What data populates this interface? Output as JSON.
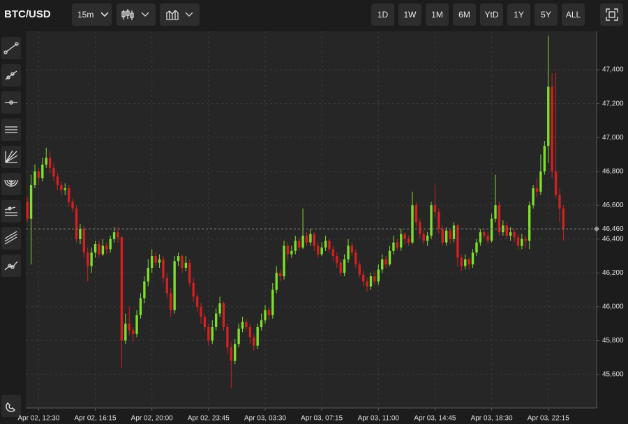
{
  "toolbar": {
    "symbol": "BTC/USD",
    "interval": "15m",
    "ranges": [
      "1D",
      "1W",
      "1M",
      "6M",
      "YtD",
      "1Y",
      "5Y",
      "ALL"
    ]
  },
  "chart_data": {
    "type": "candlestick",
    "up_color": "#7de02c",
    "down_color": "#d42020",
    "grid": true,
    "xlim": [
      -0.4,
      150.8
    ],
    "xticks": [
      {
        "value": 3,
        "label": "Apr 02, 12:30"
      },
      {
        "value": 18,
        "label": "Apr 02, 16:15"
      },
      {
        "value": 33,
        "label": "Apr 02, 20:00"
      },
      {
        "value": 48,
        "label": "Apr 02, 23:45"
      },
      {
        "value": 63,
        "label": "Apr 03, 03:30"
      },
      {
        "value": 78,
        "label": "Apr 03, 07:15"
      },
      {
        "value": 93,
        "label": "Apr 03, 11:00"
      },
      {
        "value": 108,
        "label": "Apr 03, 14:45"
      },
      {
        "value": 123,
        "label": "Apr 03, 18:30"
      },
      {
        "value": 138,
        "label": "Apr 03, 22:15"
      }
    ],
    "ylim": [
      45402,
      47627
    ],
    "yticks": [
      {
        "value": 45600,
        "label": "45,600"
      },
      {
        "value": 45800,
        "label": "45,800"
      },
      {
        "value": 46000,
        "label": "46,000"
      },
      {
        "value": 46200,
        "label": "46,200"
      },
      {
        "value": 46400,
        "label": "46,400"
      },
      {
        "value": 46600,
        "label": "46,600"
      },
      {
        "value": 46800,
        "label": "46,800"
      },
      {
        "value": 47000,
        "label": "47,000"
      },
      {
        "value": 47200,
        "label": "47,200"
      },
      {
        "value": 47400,
        "label": "47,400"
      }
    ],
    "last_price": {
      "value": 46460,
      "label": "46,460"
    },
    "ohlc": [
      [
        46620,
        46650,
        46500,
        46520
      ],
      [
        46520,
        46780,
        46250,
        46720
      ],
      [
        46720,
        46840,
        46700,
        46800
      ],
      [
        46800,
        46820,
        46720,
        46760
      ],
      [
        46760,
        46880,
        46740,
        46840
      ],
      [
        46840,
        46940,
        46820,
        46880
      ],
      [
        46880,
        46920,
        46790,
        46820
      ],
      [
        46820,
        46850,
        46740,
        46770
      ],
      [
        46770,
        46790,
        46690,
        46720
      ],
      [
        46720,
        46740,
        46660,
        46690
      ],
      [
        46690,
        46730,
        46660,
        46700
      ],
      [
        46700,
        46720,
        46590,
        46620
      ],
      [
        46620,
        46640,
        46560,
        46580
      ],
      [
        46580,
        46600,
        46380,
        46400
      ],
      [
        46400,
        46490,
        46370,
        46460
      ],
      [
        46460,
        46480,
        46290,
        46320
      ],
      [
        46320,
        46350,
        46150,
        46240
      ],
      [
        46240,
        46350,
        46200,
        46320
      ],
      [
        46320,
        46390,
        46290,
        46370
      ],
      [
        46370,
        46390,
        46290,
        46310
      ],
      [
        46310,
        46400,
        46300,
        46360
      ],
      [
        46360,
        46380,
        46310,
        46340
      ],
      [
        46340,
        46420,
        46320,
        46400
      ],
      [
        46400,
        46470,
        46380,
        46440
      ],
      [
        46440,
        46470,
        46380,
        46410
      ],
      [
        46410,
        46420,
        45640,
        45800
      ],
      [
        45800,
        45960,
        45780,
        45900
      ],
      [
        45900,
        46000,
        45830,
        45860
      ],
      [
        45860,
        45880,
        45790,
        45840
      ],
      [
        45840,
        45980,
        45820,
        45950
      ],
      [
        45950,
        46080,
        45930,
        46050
      ],
      [
        46050,
        46180,
        46020,
        46150
      ],
      [
        46150,
        46280,
        46120,
        46230
      ],
      [
        46230,
        46340,
        46200,
        46300
      ],
      [
        46300,
        46320,
        46240,
        46260
      ],
      [
        46260,
        46310,
        46230,
        46280
      ],
      [
        46280,
        46300,
        46140,
        46170
      ],
      [
        46170,
        46200,
        46050,
        46080
      ],
      [
        46080,
        46110,
        45940,
        45980
      ],
      [
        45980,
        46300,
        45960,
        46270
      ],
      [
        46270,
        46320,
        46240,
        46300
      ],
      [
        46300,
        46310,
        46200,
        46230
      ],
      [
        46230,
        46300,
        46210,
        46260
      ],
      [
        46260,
        46280,
        46120,
        46140
      ],
      [
        46140,
        46170,
        46030,
        46060
      ],
      [
        46060,
        46080,
        45970,
        46000
      ],
      [
        46000,
        46020,
        45900,
        45940
      ],
      [
        45940,
        45960,
        45860,
        45880
      ],
      [
        45880,
        45900,
        45770,
        45800
      ],
      [
        45800,
        45920,
        45780,
        45880
      ],
      [
        45880,
        45990,
        45860,
        45960
      ],
      [
        45960,
        46060,
        45940,
        46020
      ],
      [
        46020,
        46030,
        45860,
        45880
      ],
      [
        45880,
        45900,
        45720,
        45760
      ],
      [
        45760,
        45790,
        45520,
        45680
      ],
      [
        45680,
        45810,
        45660,
        45780
      ],
      [
        45780,
        45900,
        45760,
        45870
      ],
      [
        45870,
        45940,
        45850,
        45910
      ],
      [
        45910,
        45930,
        45860,
        45880
      ],
      [
        45880,
        45900,
        45780,
        45820
      ],
      [
        45820,
        45840,
        45740,
        45770
      ],
      [
        45770,
        45900,
        45750,
        45880
      ],
      [
        45880,
        45960,
        45860,
        45920
      ],
      [
        45920,
        46010,
        45900,
        45980
      ],
      [
        45980,
        46000,
        45920,
        45950
      ],
      [
        45950,
        46140,
        45930,
        46100
      ],
      [
        46100,
        46240,
        46080,
        46200
      ],
      [
        46200,
        46220,
        46150,
        46180
      ],
      [
        46180,
        46390,
        46160,
        46360
      ],
      [
        46360,
        46380,
        46280,
        46310
      ],
      [
        46310,
        46360,
        46290,
        46330
      ],
      [
        46330,
        46420,
        46310,
        46390
      ],
      [
        46390,
        46410,
        46330,
        46350
      ],
      [
        46350,
        46580,
        46340,
        46420
      ],
      [
        46420,
        46440,
        46360,
        46380
      ],
      [
        46380,
        46460,
        46360,
        46430
      ],
      [
        46430,
        46440,
        46330,
        46360
      ],
      [
        46360,
        46380,
        46290,
        46310
      ],
      [
        46310,
        46380,
        46300,
        46350
      ],
      [
        46350,
        46420,
        46330,
        46390
      ],
      [
        46390,
        46400,
        46320,
        46340
      ],
      [
        46340,
        46360,
        46270,
        46300
      ],
      [
        46300,
        46320,
        46230,
        46260
      ],
      [
        46260,
        46280,
        46180,
        46200
      ],
      [
        46200,
        46310,
        46180,
        46280
      ],
      [
        46280,
        46400,
        46260,
        46360
      ],
      [
        46360,
        46380,
        46300,
        46320
      ],
      [
        46320,
        46340,
        46230,
        46250
      ],
      [
        46250,
        46270,
        46170,
        46190
      ],
      [
        46190,
        46210,
        46120,
        46150
      ],
      [
        46150,
        46170,
        46090,
        46120
      ],
      [
        46120,
        46200,
        46100,
        46180
      ],
      [
        46180,
        46210,
        46130,
        46150
      ],
      [
        46150,
        46250,
        46130,
        46220
      ],
      [
        46220,
        46310,
        46200,
        46280
      ],
      [
        46280,
        46300,
        46230,
        46250
      ],
      [
        46250,
        46360,
        46240,
        46330
      ],
      [
        46330,
        46420,
        46310,
        46380
      ],
      [
        46380,
        46400,
        46330,
        46350
      ],
      [
        46350,
        46460,
        46330,
        46430
      ],
      [
        46430,
        46440,
        46370,
        46400
      ],
      [
        46400,
        46420,
        46360,
        46380
      ],
      [
        46380,
        46680,
        46370,
        46600
      ],
      [
        46600,
        46620,
        46470,
        46500
      ],
      [
        46500,
        46520,
        46400,
        46430
      ],
      [
        46430,
        46450,
        46370,
        46390
      ],
      [
        46390,
        46440,
        46360,
        46420
      ],
      [
        46420,
        46620,
        46400,
        46600
      ],
      [
        46600,
        46720,
        46530,
        46560
      ],
      [
        46560,
        46580,
        46430,
        46460
      ],
      [
        46460,
        46480,
        46360,
        46380
      ],
      [
        46380,
        46470,
        46360,
        46450
      ],
      [
        46450,
        46460,
        46370,
        46400
      ],
      [
        46400,
        46500,
        46380,
        46480
      ],
      [
        46480,
        46490,
        46240,
        46290
      ],
      [
        46290,
        46310,
        46210,
        46240
      ],
      [
        46240,
        46310,
        46220,
        46280
      ],
      [
        46280,
        46290,
        46220,
        46250
      ],
      [
        46250,
        46340,
        46230,
        46320
      ],
      [
        46320,
        46400,
        46300,
        46380
      ],
      [
        46380,
        46460,
        46360,
        46440
      ],
      [
        46440,
        46460,
        46400,
        46420
      ],
      [
        46420,
        46440,
        46370,
        46390
      ],
      [
        46390,
        46550,
        46380,
        46520
      ],
      [
        46520,
        46780,
        46500,
        46600
      ],
      [
        46600,
        46620,
        46420,
        46440
      ],
      [
        46440,
        46510,
        46420,
        46480
      ],
      [
        46480,
        46500,
        46400,
        46420
      ],
      [
        46420,
        46470,
        46390,
        46440
      ],
      [
        46440,
        46460,
        46380,
        46410
      ],
      [
        46410,
        46430,
        46340,
        46360
      ],
      [
        46360,
        46430,
        46340,
        46400
      ],
      [
        46400,
        46420,
        46350,
        46390
      ],
      [
        46390,
        46620,
        46340,
        46600
      ],
      [
        46600,
        46720,
        46580,
        46700
      ],
      [
        46700,
        46760,
        46650,
        46680
      ],
      [
        46680,
        46900,
        46660,
        46800
      ],
      [
        46800,
        46980,
        46780,
        46950
      ],
      [
        46950,
        47600,
        46850,
        47300
      ],
      [
        47300,
        47380,
        46760,
        46800
      ],
      [
        46800,
        47380,
        46640,
        46660
      ],
      [
        46660,
        46700,
        46500,
        46580
      ],
      [
        46580,
        46600,
        46390,
        46460
      ]
    ]
  }
}
